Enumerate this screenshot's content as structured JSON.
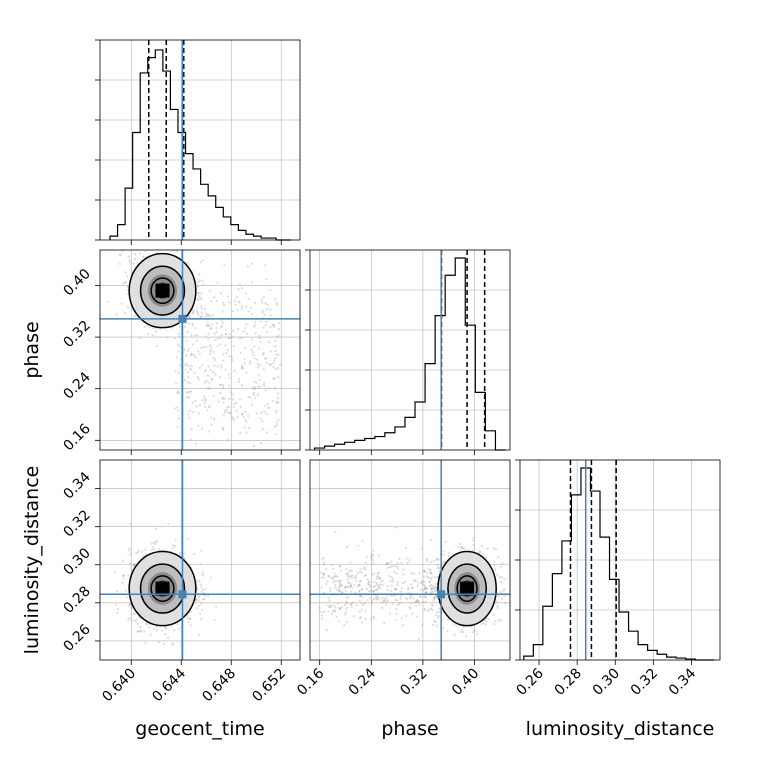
{
  "chart_data": {
    "type": "corner",
    "parameters": [
      "geocent_time",
      "phase",
      "luminosity_distance"
    ],
    "injection": {
      "geocent_time": 0.6441,
      "phase": 0.3483,
      "luminosity_distance": 0.2845
    },
    "quantiles": {
      "geocent_time": [
        0.6414,
        0.6428,
        0.6442
      ],
      "phase": [
        0.3488,
        0.3885,
        0.4157
      ],
      "luminosity_distance": [
        0.2765,
        0.2875,
        0.3005
      ]
    },
    "axes": {
      "geocent_time": {
        "lim": [
          0.6375,
          0.6535
        ],
        "ticks": [
          0.64,
          0.644,
          0.648,
          0.652
        ],
        "tick_labels": [
          "0.640",
          "0.644",
          "0.648",
          "0.652"
        ]
      },
      "phase": {
        "lim": [
          0.145,
          0.455
        ],
        "ticks": [
          0.16,
          0.24,
          0.32,
          0.4
        ],
        "tick_labels": [
          "0.16",
          "0.24",
          "0.32",
          "0.40"
        ]
      },
      "luminosity_distance": {
        "lim": [
          0.25,
          0.355
        ],
        "ticks": [
          0.26,
          0.28,
          0.3,
          0.32,
          0.34
        ],
        "tick_labels": [
          "0.26",
          "0.28",
          "0.30",
          "0.32",
          "0.34"
        ]
      }
    },
    "hist1d": {
      "geocent_time": {
        "edges_range": [
          0.6383,
          0.6528
        ],
        "counts": [
          0.02,
          0.08,
          0.27,
          0.56,
          0.87,
          0.95,
          0.99,
          0.88,
          0.68,
          0.56,
          0.45,
          0.37,
          0.29,
          0.23,
          0.17,
          0.12,
          0.08,
          0.05,
          0.03,
          0.02,
          0.01,
          0.01,
          0.0,
          0.0
        ]
      },
      "phase": {
        "edges_range": [
          0.152,
          0.448
        ],
        "counts": [
          0.01,
          0.02,
          0.03,
          0.04,
          0.05,
          0.06,
          0.07,
          0.09,
          0.12,
          0.17,
          0.25,
          0.45,
          0.7,
          0.91,
          1.0,
          0.65,
          0.3,
          0.1,
          0.0
        ]
      },
      "luminosity_distance": {
        "edges_range": [
          0.252,
          0.352
        ],
        "counts": [
          0.02,
          0.08,
          0.28,
          0.45,
          0.62,
          0.86,
          1.0,
          0.88,
          0.64,
          0.42,
          0.25,
          0.15,
          0.08,
          0.05,
          0.03,
          0.015,
          0.01,
          0.005,
          0.0,
          0.0
        ]
      }
    },
    "grid": true,
    "colors": {
      "injection": "#4682b4",
      "hist": "#000000",
      "grid": "#b0b0b0",
      "quantile": "#000000",
      "points": "#808080"
    }
  }
}
